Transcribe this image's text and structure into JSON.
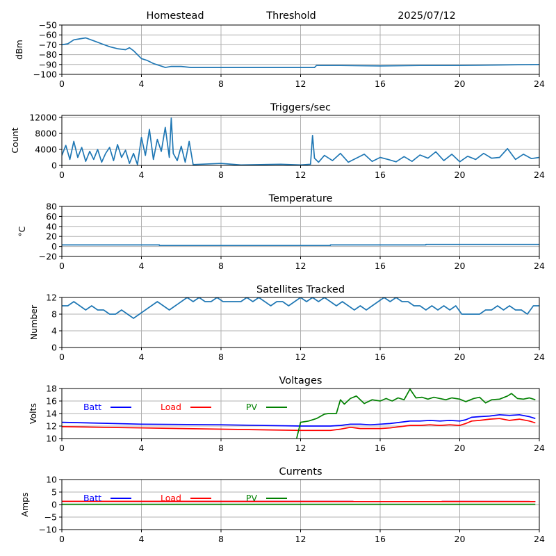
{
  "header": {
    "site": "Homestead",
    "mode": "Threshold",
    "date": "2025/07/12"
  },
  "chart_data": [
    {
      "id": "signal",
      "type": "line",
      "title": "",
      "ylabel": "dBm",
      "xlabel": "",
      "xlim": [
        0,
        24
      ],
      "ylim": [
        -100,
        -50
      ],
      "xticks": [
        0,
        4,
        8,
        12,
        16,
        20,
        24
      ],
      "yticks": [
        -100,
        -90,
        -80,
        -70,
        -60,
        -50
      ],
      "grid": true,
      "series": [
        {
          "color": "#1f77b4",
          "x": [
            0,
            0.3,
            0.6,
            0.9,
            1.2,
            1.6,
            2.0,
            2.4,
            2.8,
            3.2,
            3.4,
            3.6,
            3.8,
            4.0,
            4.3,
            4.6,
            4.9,
            5.2,
            5.5,
            6.0,
            6.5,
            8,
            10,
            12,
            12.7,
            12.8,
            14,
            16,
            18,
            20,
            22,
            24
          ],
          "y": [
            -70,
            -69,
            -65,
            -64,
            -63,
            -66,
            -69,
            -72,
            -74,
            -75,
            -73,
            -76,
            -80,
            -84,
            -86,
            -89,
            -91,
            -93,
            -92,
            -92,
            -93,
            -93,
            -93,
            -93,
            -93,
            -91,
            -91,
            -91.5,
            -91,
            -91,
            -90.5,
            -90
          ]
        }
      ]
    },
    {
      "id": "triggers",
      "type": "line",
      "title": "Triggers/sec",
      "ylabel": "Count",
      "xlabel": "",
      "xlim": [
        0,
        24
      ],
      "ylim": [
        0,
        12500
      ],
      "xticks": [
        0,
        4,
        8,
        12,
        16,
        20,
        24
      ],
      "yticks": [
        0,
        4000,
        8000,
        12000
      ],
      "grid": true,
      "series": [
        {
          "color": "#1f77b4",
          "x": [
            0,
            0.2,
            0.4,
            0.6,
            0.8,
            1.0,
            1.2,
            1.4,
            1.6,
            1.8,
            2.0,
            2.2,
            2.4,
            2.6,
            2.8,
            3.0,
            3.2,
            3.4,
            3.6,
            3.8,
            4.0,
            4.2,
            4.4,
            4.6,
            4.8,
            5.0,
            5.2,
            5.4,
            5.5,
            5.6,
            5.8,
            6.0,
            6.2,
            6.4,
            6.6,
            7.0,
            8,
            9,
            10,
            11,
            12,
            12.5,
            12.6,
            12.7,
            12.9,
            13.2,
            13.6,
            14.0,
            14.4,
            14.8,
            15.2,
            15.6,
            16.0,
            16.4,
            16.8,
            17.2,
            17.6,
            18.0,
            18.4,
            18.8,
            19.2,
            19.6,
            20.0,
            20.4,
            20.8,
            21.2,
            21.6,
            22.0,
            22.4,
            22.8,
            23.2,
            23.6,
            24
          ],
          "y": [
            2500,
            5000,
            1500,
            6000,
            2000,
            4500,
            1000,
            3500,
            1500,
            4000,
            800,
            3000,
            4500,
            1200,
            5200,
            2000,
            3800,
            500,
            3000,
            200,
            7000,
            2500,
            9000,
            1500,
            6500,
            3500,
            9500,
            2000,
            11800,
            3000,
            1200,
            4800,
            800,
            6000,
            200,
            300,
            500,
            100,
            200,
            300,
            100,
            300,
            7500,
            1800,
            800,
            2500,
            1200,
            3000,
            800,
            1800,
            2800,
            1000,
            2000,
            1500,
            900,
            2200,
            1000,
            2600,
            1800,
            3400,
            1200,
            2800,
            900,
            2300,
            1500,
            3000,
            1800,
            2000,
            4200,
            1500,
            2800,
            1700,
            2000
          ]
        }
      ]
    },
    {
      "id": "temperature",
      "type": "line",
      "title": "Temperature",
      "ylabel": "°C",
      "xlabel": "",
      "xlim": [
        0,
        24
      ],
      "ylim": [
        -20,
        80
      ],
      "xticks": [
        0,
        4,
        8,
        12,
        16,
        20,
        24
      ],
      "yticks": [
        -20,
        0,
        20,
        40,
        60,
        80
      ],
      "grid": true,
      "series": [
        {
          "color": "#1f77b4",
          "x": [
            0,
            4.9,
            4.9,
            13.5,
            13.5,
            18.3,
            18.3,
            24
          ],
          "y": [
            3,
            3,
            2,
            2,
            3,
            3,
            4,
            4
          ]
        }
      ]
    },
    {
      "id": "satellites",
      "type": "line",
      "title": "Satellites Tracked",
      "ylabel": "Number",
      "xlabel": "",
      "xlim": [
        0,
        24
      ],
      "ylim": [
        0,
        12
      ],
      "xticks": [
        0,
        4,
        8,
        12,
        16,
        20,
        24
      ],
      "yticks": [
        0,
        4,
        8,
        12
      ],
      "grid": true,
      "series": [
        {
          "color": "#1f77b4",
          "x": [
            0,
            0.3,
            0.6,
            0.9,
            1.2,
            1.5,
            1.8,
            2.1,
            2.4,
            2.7,
            3.0,
            3.3,
            3.6,
            3.9,
            4.2,
            4.5,
            4.8,
            5.1,
            5.4,
            5.7,
            6.0,
            6.3,
            6.6,
            6.9,
            7.2,
            7.5,
            7.8,
            8.1,
            8.4,
            8.7,
            9.0,
            9.3,
            9.6,
            9.9,
            10.2,
            10.5,
            10.8,
            11.1,
            11.4,
            11.7,
            12.0,
            12.3,
            12.6,
            12.9,
            13.2,
            13.5,
            13.8,
            14.1,
            14.4,
            14.7,
            15.0,
            15.3,
            15.6,
            15.9,
            16.2,
            16.5,
            16.8,
            17.1,
            17.4,
            17.7,
            18.0,
            18.3,
            18.6,
            18.9,
            19.2,
            19.5,
            19.8,
            20.1,
            20.4,
            20.7,
            21.0,
            21.3,
            21.6,
            21.9,
            22.2,
            22.5,
            22.8,
            23.1,
            23.4,
            23.7,
            24
          ],
          "y": [
            10,
            10,
            11,
            10,
            9,
            10,
            9,
            9,
            8,
            8,
            9,
            8,
            7,
            8,
            9,
            10,
            11,
            10,
            9,
            10,
            11,
            12,
            11,
            12,
            11,
            11,
            12,
            11,
            11,
            11,
            11,
            12,
            11,
            12,
            11,
            10,
            11,
            11,
            10,
            11,
            12,
            11,
            12,
            11,
            12,
            11,
            10,
            11,
            10,
            9,
            10,
            9,
            10,
            11,
            12,
            11,
            12,
            11,
            11,
            10,
            10,
            9,
            10,
            9,
            10,
            9,
            10,
            8,
            8,
            8,
            8,
            9,
            9,
            10,
            9,
            10,
            9,
            9,
            8,
            10,
            10
          ]
        }
      ]
    },
    {
      "id": "voltages",
      "type": "line",
      "title": "Voltages",
      "ylabel": "Volts",
      "xlabel": "",
      "xlim": [
        0,
        24
      ],
      "ylim": [
        10,
        18
      ],
      "xticks": [
        0,
        4,
        8,
        12,
        16,
        20,
        24
      ],
      "yticks": [
        10,
        12,
        14,
        16,
        18
      ],
      "grid": true,
      "legend": [
        {
          "name": "Batt",
          "color": "#0000ff"
        },
        {
          "name": "Load",
          "color": "#ff0000"
        },
        {
          "name": "PV",
          "color": "#008000"
        }
      ],
      "series": [
        {
          "name": "Batt",
          "color": "#0000ff",
          "x": [
            0,
            4,
            8,
            12,
            13.5,
            14,
            14.5,
            15,
            15.5,
            16,
            16.5,
            17,
            17.5,
            18,
            18.5,
            19,
            19.5,
            20,
            20.3,
            20.6,
            21,
            21.5,
            22,
            22.5,
            23,
            23.5,
            23.8
          ],
          "y": [
            12.6,
            12.3,
            12.2,
            12.0,
            12.0,
            12.1,
            12.3,
            12.3,
            12.2,
            12.3,
            12.4,
            12.6,
            12.8,
            12.8,
            12.9,
            12.8,
            12.9,
            12.8,
            13.0,
            13.4,
            13.5,
            13.6,
            13.8,
            13.7,
            13.8,
            13.5,
            13.2
          ]
        },
        {
          "name": "Load",
          "color": "#ff0000",
          "x": [
            0,
            4,
            8,
            12,
            13.5,
            14,
            14.5,
            15,
            15.5,
            16,
            16.5,
            17,
            17.5,
            18,
            18.5,
            19,
            19.5,
            20,
            20.3,
            20.6,
            21,
            21.5,
            22,
            22.5,
            23,
            23.5,
            23.8
          ],
          "y": [
            11.9,
            11.7,
            11.5,
            11.3,
            11.3,
            11.5,
            11.8,
            11.6,
            11.6,
            11.6,
            11.7,
            11.9,
            12.1,
            12.1,
            12.2,
            12.1,
            12.2,
            12.1,
            12.4,
            12.8,
            12.9,
            13.1,
            13.2,
            12.9,
            13.1,
            12.8,
            12.5
          ]
        },
        {
          "name": "PV",
          "color": "#008000",
          "x": [
            11.8,
            12.0,
            12.4,
            12.8,
            13.2,
            13.4,
            13.8,
            14.0,
            14.2,
            14.5,
            14.8,
            15.2,
            15.6,
            16.0,
            16.3,
            16.6,
            16.9,
            17.2,
            17.5,
            17.8,
            18.1,
            18.4,
            18.7,
            19.0,
            19.3,
            19.6,
            20.0,
            20.3,
            20.7,
            21.0,
            21.3,
            21.6,
            22.0,
            22.4,
            22.6,
            22.9,
            23.2,
            23.5,
            23.8
          ],
          "y": [
            10.0,
            12.6,
            12.8,
            13.2,
            13.9,
            14.0,
            14.0,
            16.2,
            15.5,
            16.4,
            16.8,
            15.6,
            16.2,
            16.0,
            16.4,
            16.0,
            16.5,
            16.2,
            17.9,
            16.5,
            16.6,
            16.3,
            16.6,
            16.4,
            16.2,
            16.5,
            16.3,
            15.9,
            16.4,
            16.6,
            15.7,
            16.2,
            16.3,
            16.8,
            17.2,
            16.4,
            16.3,
            16.5,
            16.2
          ]
        }
      ]
    },
    {
      "id": "currents",
      "type": "line",
      "title": "Currents",
      "ylabel": "Amps",
      "xlabel": "",
      "xlim": [
        0,
        24
      ],
      "ylim": [
        -10,
        10
      ],
      "xticks": [
        0,
        4,
        8,
        12,
        16,
        20,
        24
      ],
      "yticks": [
        -10,
        -5,
        0,
        5,
        10
      ],
      "grid": true,
      "legend": [
        {
          "name": "Batt",
          "color": "#0000ff"
        },
        {
          "name": "Load",
          "color": "#ff0000"
        },
        {
          "name": "PV",
          "color": "#008000"
        }
      ],
      "series": [
        {
          "name": "PV",
          "color": "#008000",
          "x": [
            0,
            23.8
          ],
          "y": [
            0.1,
            0.1
          ]
        },
        {
          "name": "Batt",
          "color": "#0000ff",
          "x": [
            0,
            23.8
          ],
          "y": [
            1.3,
            1.2
          ]
        },
        {
          "name": "Load",
          "color": "#ff0000",
          "x": [
            0,
            23.8
          ],
          "y": [
            1.3,
            1.2
          ]
        }
      ]
    }
  ]
}
